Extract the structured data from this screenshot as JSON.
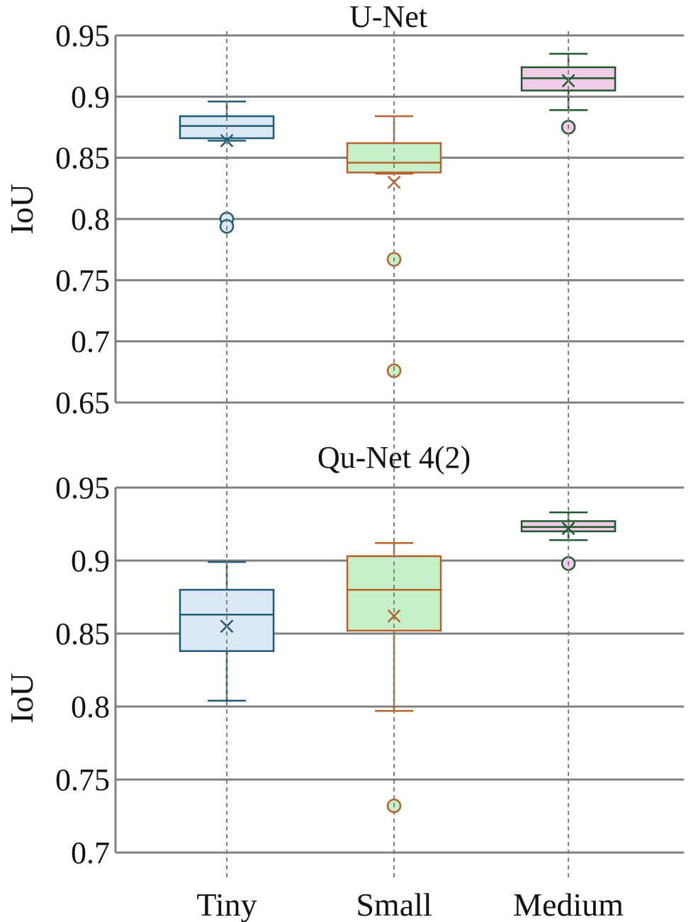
{
  "chart_data": [
    {
      "type": "box",
      "title": "U-Net",
      "ylabel": "IoU",
      "xlabel": "",
      "ylim": [
        0.65,
        0.95
      ],
      "yticks": [
        "0.95",
        "0.9",
        "0.85",
        "0.8",
        "0.75",
        "0.7",
        "0.65"
      ],
      "grid": "horizontal",
      "categories": [
        "Tiny",
        "Small",
        "Medium"
      ],
      "boxes": [
        {
          "category": "Tiny",
          "whisker_low": 0.864,
          "q1": 0.866,
          "median": 0.876,
          "q3": 0.884,
          "whisker_high": 0.896,
          "mean": 0.864,
          "outliers": [
            0.8,
            0.794
          ],
          "color": "#1f5a78",
          "fill": "#dce8f6"
        },
        {
          "category": "Small",
          "whisker_low": 0.837,
          "q1": 0.838,
          "median": 0.846,
          "q3": 0.862,
          "whisker_high": 0.884,
          "mean": 0.83,
          "outliers": [
            0.767,
            0.676
          ],
          "color": "#b8622a",
          "fill": "#c6f0c8"
        },
        {
          "category": "Medium",
          "whisker_low": 0.889,
          "q1": 0.905,
          "median": 0.915,
          "q3": 0.924,
          "whisker_high": 0.935,
          "mean": 0.913,
          "outliers": [
            0.875
          ],
          "color": "#1d5a2a",
          "fill": "#f1cbe8"
        }
      ]
    },
    {
      "type": "box",
      "title": "Qu-Net 4(2)",
      "ylabel": "IoU",
      "xlabel": "",
      "ylim": [
        0.7,
        0.95
      ],
      "yticks": [
        "0.95",
        "0.9",
        "0.85",
        "0.8",
        "0.75",
        "0.7"
      ],
      "grid": "horizontal",
      "categories": [
        "Tiny",
        "Small",
        "Medium"
      ],
      "boxes": [
        {
          "category": "Tiny",
          "whisker_low": 0.804,
          "q1": 0.838,
          "median": 0.863,
          "q3": 0.88,
          "whisker_high": 0.899,
          "mean": 0.855,
          "outliers": [],
          "color": "#1f5a78",
          "fill": "#dce8f6"
        },
        {
          "category": "Small",
          "whisker_low": 0.797,
          "q1": 0.852,
          "median": 0.88,
          "q3": 0.903,
          "whisker_high": 0.912,
          "mean": 0.862,
          "outliers": [
            0.732
          ],
          "color": "#b8622a",
          "fill": "#c6f0c8"
        },
        {
          "category": "Medium",
          "whisker_low": 0.914,
          "q1": 0.92,
          "median": 0.923,
          "q3": 0.927,
          "whisker_high": 0.933,
          "mean": 0.922,
          "outliers": [
            0.898
          ],
          "color": "#1d5a2a",
          "fill": "#f1cbe8"
        }
      ]
    }
  ],
  "colors": {
    "grid": "#808080",
    "guide": "#808080",
    "text": "#111111"
  }
}
